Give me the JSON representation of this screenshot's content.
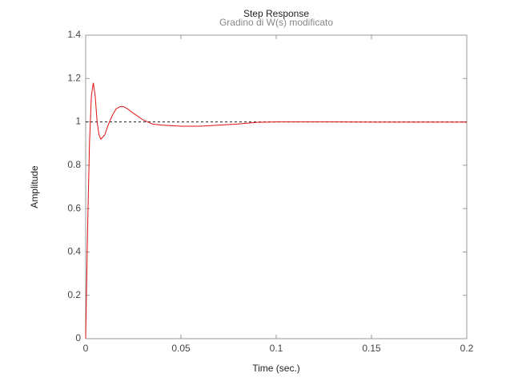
{
  "chart_data": {
    "type": "line",
    "title": "Step Response",
    "subtitle": "Gradino di W(s) modificato",
    "xlabel": "Time (sec.)",
    "ylabel": "Amplitude",
    "x": [
      0,
      0.001,
      0.002,
      0.003,
      0.004,
      0.005,
      0.006,
      0.007,
      0.008,
      0.01,
      0.012,
      0.014,
      0.016,
      0.018,
      0.02,
      0.022,
      0.025,
      0.03,
      0.035,
      0.04,
      0.05,
      0.06,
      0.07,
      0.08,
      0.09,
      0.1,
      0.11,
      0.12,
      0.13,
      0.15,
      0.2
    ],
    "series": [
      {
        "color": "#e01010",
        "values": [
          0,
          0.5,
          0.9,
          1.12,
          1.18,
          1.12,
          1.0,
          0.94,
          0.92,
          0.94,
          0.99,
          1.03,
          1.06,
          1.07,
          1.07,
          1.06,
          1.04,
          1.01,
          0.99,
          0.985,
          0.98,
          0.98,
          0.985,
          0.99,
          0.998,
          1.0,
          1.0,
          1.0,
          1.0,
          0.999,
          0.999
        ]
      }
    ],
    "reference_line": 1,
    "xlim": [
      0,
      0.2
    ],
    "xticks": [
      0,
      0.05,
      0.1,
      0.15,
      0.2
    ],
    "ylim": [
      0,
      1.4
    ],
    "yticks": [
      0,
      0.2,
      0.4,
      0.6,
      0.8,
      1,
      1.2,
      1.4
    ]
  }
}
